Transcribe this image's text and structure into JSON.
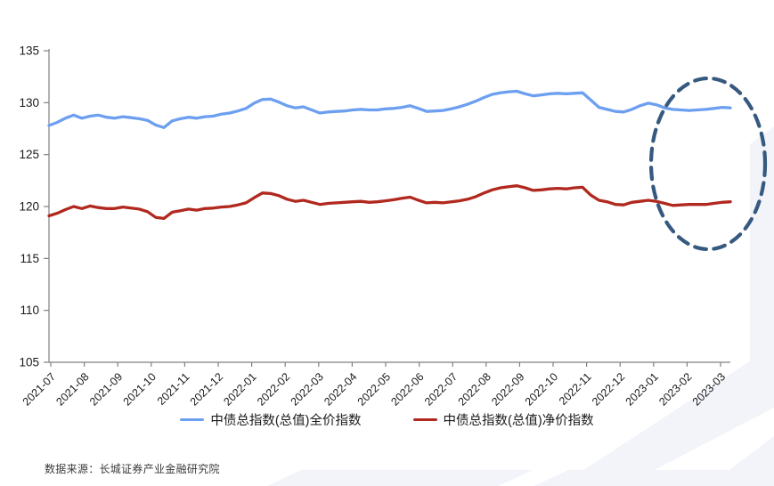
{
  "source_note": "数据来源：长城证券产业金融研究院",
  "chart_data": {
    "type": "line",
    "title": "",
    "xlabel": "",
    "ylabel": "",
    "grid": false,
    "legend_position": "bottom",
    "ylim": [
      105,
      135
    ],
    "y_ticks": [
      135,
      130,
      125,
      120,
      115,
      110,
      105
    ],
    "x_tick_labels": [
      "2021-07",
      "2021-08",
      "2021-09",
      "2021-10",
      "2021-11",
      "2021-12",
      "2022-01",
      "2022-02",
      "2022-03",
      "2022-04",
      "2022-05",
      "2022-06",
      "2022-07",
      "2022-08",
      "2022-09",
      "2022-10",
      "2022-11",
      "2022-12",
      "2023-01",
      "2023-02",
      "2023-03"
    ],
    "axis_color": "#808080",
    "tick_label_color": "#1a1a1a",
    "series": [
      {
        "name": "中债总指数(总值)全价指数",
        "color": "#6c9ff0",
        "values": [
          127.8,
          128.1,
          128.5,
          128.8,
          128.5,
          128.7,
          128.8,
          128.6,
          128.5,
          128.65,
          128.55,
          128.45,
          128.3,
          127.85,
          127.6,
          128.25,
          128.45,
          128.6,
          128.5,
          128.65,
          128.7,
          128.9,
          129.0,
          129.2,
          129.45,
          129.95,
          130.3,
          130.35,
          130.05,
          129.7,
          129.5,
          129.6,
          129.3,
          129.0,
          129.1,
          129.15,
          129.2,
          129.3,
          129.35,
          129.3,
          129.3,
          129.4,
          129.45,
          129.55,
          129.7,
          129.45,
          129.15,
          129.2,
          129.25,
          129.4,
          129.6,
          129.85,
          130.15,
          130.5,
          130.8,
          130.95,
          131.05,
          131.1,
          130.85,
          130.65,
          130.75,
          130.85,
          130.9,
          130.85,
          130.9,
          130.95,
          130.25,
          129.55,
          129.35,
          129.15,
          129.1,
          129.35,
          129.7,
          129.95,
          129.8,
          129.5,
          129.35,
          129.3,
          129.25,
          129.3,
          129.35,
          129.45,
          129.55,
          129.5
        ]
      },
      {
        "name": "中债总指数(总值)净价指数",
        "color": "#b1281e",
        "values": [
          119.1,
          119.35,
          119.7,
          120.0,
          119.8,
          120.05,
          119.9,
          119.8,
          119.8,
          119.95,
          119.85,
          119.75,
          119.5,
          118.95,
          118.85,
          119.45,
          119.6,
          119.75,
          119.65,
          119.8,
          119.85,
          119.95,
          120.0,
          120.15,
          120.35,
          120.85,
          121.3,
          121.25,
          121.05,
          120.7,
          120.5,
          120.6,
          120.4,
          120.2,
          120.3,
          120.35,
          120.4,
          120.45,
          120.5,
          120.4,
          120.45,
          120.55,
          120.65,
          120.8,
          120.9,
          120.6,
          120.35,
          120.4,
          120.35,
          120.45,
          120.55,
          120.7,
          120.95,
          121.3,
          121.6,
          121.8,
          121.9,
          122.0,
          121.8,
          121.55,
          121.6,
          121.7,
          121.75,
          121.7,
          121.8,
          121.85,
          121.1,
          120.6,
          120.45,
          120.2,
          120.15,
          120.4,
          120.5,
          120.6,
          120.5,
          120.3,
          120.1,
          120.15,
          120.2,
          120.2,
          120.2,
          120.3,
          120.4,
          120.45
        ]
      }
    ],
    "annotation": {
      "type": "dashed-ellipse",
      "color": "#36597f",
      "highlighted_range": "2023-01 to 2023-03"
    }
  }
}
